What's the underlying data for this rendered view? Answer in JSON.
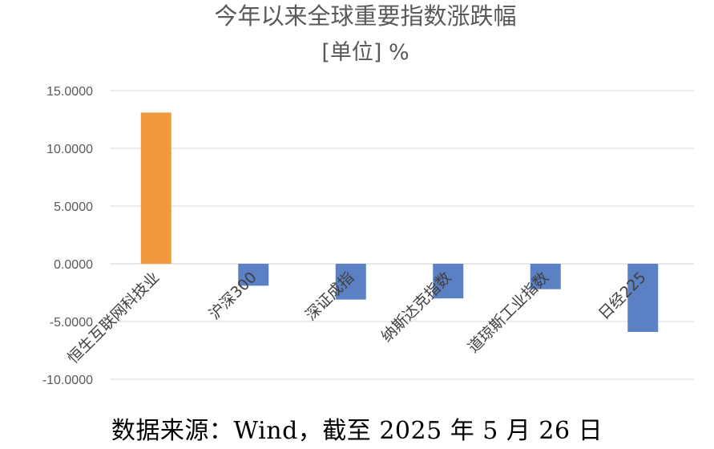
{
  "chart_data": {
    "type": "bar",
    "title": "今年以来全球重要指数涨跌幅",
    "subtitle": "[单位] %",
    "categories": [
      "恒生互联网科技业",
      "沪深300",
      "深证成指",
      "纳斯达克指数",
      "道琼斯工业指数",
      "日经225"
    ],
    "values": [
      13.1,
      -1.9,
      -3.1,
      -3.0,
      -2.2,
      -5.9
    ],
    "ylim": [
      -10,
      15
    ],
    "yticks": [
      "15.0000",
      "10.0000",
      "5.0000",
      "0.0000",
      "-5.0000",
      "-10.0000"
    ],
    "ytick_values": [
      15,
      10,
      5,
      0,
      -5,
      -10
    ],
    "grid": true,
    "colors": {
      "highlight": "#f0993f",
      "default": "#5b80c4"
    },
    "highlight_index": 0
  },
  "source_note": "数据来源：Wind，截至 2025 年 5 月 26 日"
}
